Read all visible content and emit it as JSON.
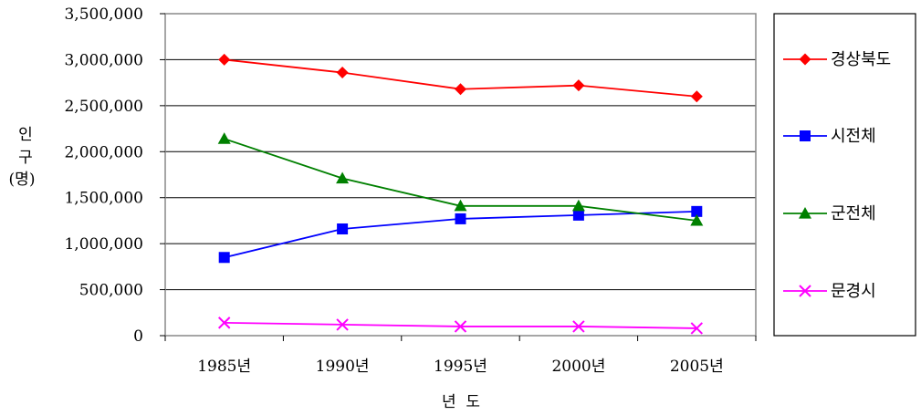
{
  "chart_data": {
    "type": "line",
    "categories": [
      "1985년",
      "1990년",
      "1995년",
      "2000년",
      "2005년"
    ],
    "ylabel_lines": [
      "인",
      "구",
      "(명)"
    ],
    "xlabel": "년  도",
    "ylim": [
      0,
      3500000
    ],
    "ytick_labels": [
      "0",
      "500,000",
      "1,000,000",
      "1,500,000",
      "2,000,000",
      "2,500,000",
      "3,000,000",
      "3,500,000"
    ],
    "grid": true,
    "legend_position": "right",
    "series": [
      {
        "name": "경상북도",
        "color": "#ff0000",
        "marker": "diamond",
        "values": [
          3000000,
          2860000,
          2680000,
          2720000,
          2600000
        ]
      },
      {
        "name": "시전체",
        "color": "#0000ff",
        "marker": "square",
        "values": [
          850000,
          1160000,
          1270000,
          1310000,
          1350000
        ]
      },
      {
        "name": "군전체",
        "color": "#008000",
        "marker": "triangle",
        "values": [
          2140000,
          1710000,
          1410000,
          1410000,
          1250000
        ]
      },
      {
        "name": "문경시",
        "color": "#ff00ff",
        "marker": "x",
        "values": [
          140000,
          120000,
          100000,
          100000,
          80000
        ]
      }
    ]
  }
}
